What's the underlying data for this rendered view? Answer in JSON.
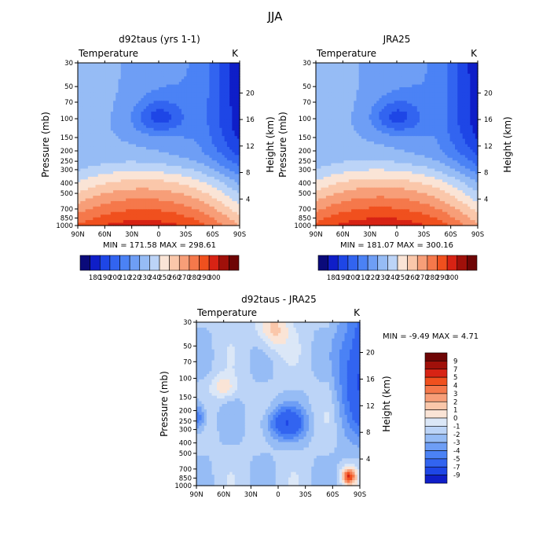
{
  "page_title": "JJA",
  "chart_data": [
    {
      "type": "heatmap",
      "title": "d92taus (yrs 1-1)",
      "left_label": "Temperature",
      "right_label": "K",
      "ylabel": "Pressure (mb)",
      "y2label": "Height (km)",
      "pressure_ticks": [
        "30",
        "50",
        "70",
        "100",
        "150",
        "200",
        "250",
        "300",
        "400",
        "500",
        "700",
        "850",
        "1000"
      ],
      "height_ticks": [
        "20",
        "16",
        "12",
        "8",
        "4"
      ],
      "lat_ticks": [
        "90N",
        "60N",
        "30N",
        "0",
        "30S",
        "60S",
        "90S"
      ],
      "stats": "MIN = 171.58   MAX = 298.61",
      "colorbar_labels": [
        "180",
        "190",
        "200",
        "210",
        "220",
        "230",
        "240",
        "250",
        "260",
        "270",
        "280",
        "290",
        "300"
      ],
      "field": "jja_model_temperature"
    },
    {
      "type": "heatmap",
      "title": "JRA25",
      "left_label": "Temperature",
      "right_label": "K",
      "ylabel": "Pressure (mb)",
      "y2label": "Height (km)",
      "pressure_ticks": [
        "30",
        "50",
        "70",
        "100",
        "150",
        "200",
        "250",
        "300",
        "400",
        "500",
        "700",
        "850",
        "1000"
      ],
      "height_ticks": [
        "20",
        "16",
        "12",
        "8",
        "4"
      ],
      "lat_ticks": [
        "90N",
        "60N",
        "30N",
        "0",
        "30S",
        "60S",
        "90S"
      ],
      "stats": "MIN = 181.07   MAX = 300.16",
      "colorbar_labels": [
        "180",
        "190",
        "200",
        "210",
        "220",
        "230",
        "240",
        "250",
        "260",
        "270",
        "280",
        "290",
        "300"
      ],
      "field": "jja_reanalysis_temperature"
    },
    {
      "type": "heatmap",
      "title": "d92taus - JRA25",
      "left_label": "Temperature",
      "right_label": "K",
      "ylabel": "Pressure (mb)",
      "y2label": "Height (km)",
      "pressure_ticks": [
        "30",
        "50",
        "70",
        "100",
        "150",
        "200",
        "250",
        "300",
        "400",
        "500",
        "700",
        "850",
        "1000"
      ],
      "height_ticks": [
        "20",
        "16",
        "12",
        "8",
        "4"
      ],
      "lat_ticks": [
        "90N",
        "60N",
        "30N",
        "0",
        "30S",
        "60S",
        "90S"
      ],
      "stats": "MIN =   -9.49   MAX =    4.71",
      "colorbar_labels": [
        "9",
        "7",
        "5",
        "4",
        "3",
        "2",
        "1",
        "0",
        "-1",
        "-2",
        "-3",
        "-4",
        "-5",
        "-7",
        "-9"
      ],
      "field": "model_minus_reanalysis_difference"
    }
  ],
  "palette_abs": [
    "#0a0a7a",
    "#0f1ec8",
    "#1e46e6",
    "#3264f0",
    "#4b82f5",
    "#6e9ef5",
    "#96bcf5",
    "#bcd4f7",
    "#fae4d6",
    "#fac7aa",
    "#f79e78",
    "#f5784b",
    "#f0501e",
    "#d72314",
    "#a0100a",
    "#6e0505"
  ],
  "palette_diff": [
    "#6e0505",
    "#a0100a",
    "#d72314",
    "#f0501e",
    "#f5784b",
    "#f79e78",
    "#fac7aa",
    "#fae4d6",
    "#dbe7f7",
    "#bcd4f7",
    "#96bcf5",
    "#6e9ef5",
    "#4b82f5",
    "#3264f0",
    "#1e46e6",
    "#0f1ec8"
  ]
}
